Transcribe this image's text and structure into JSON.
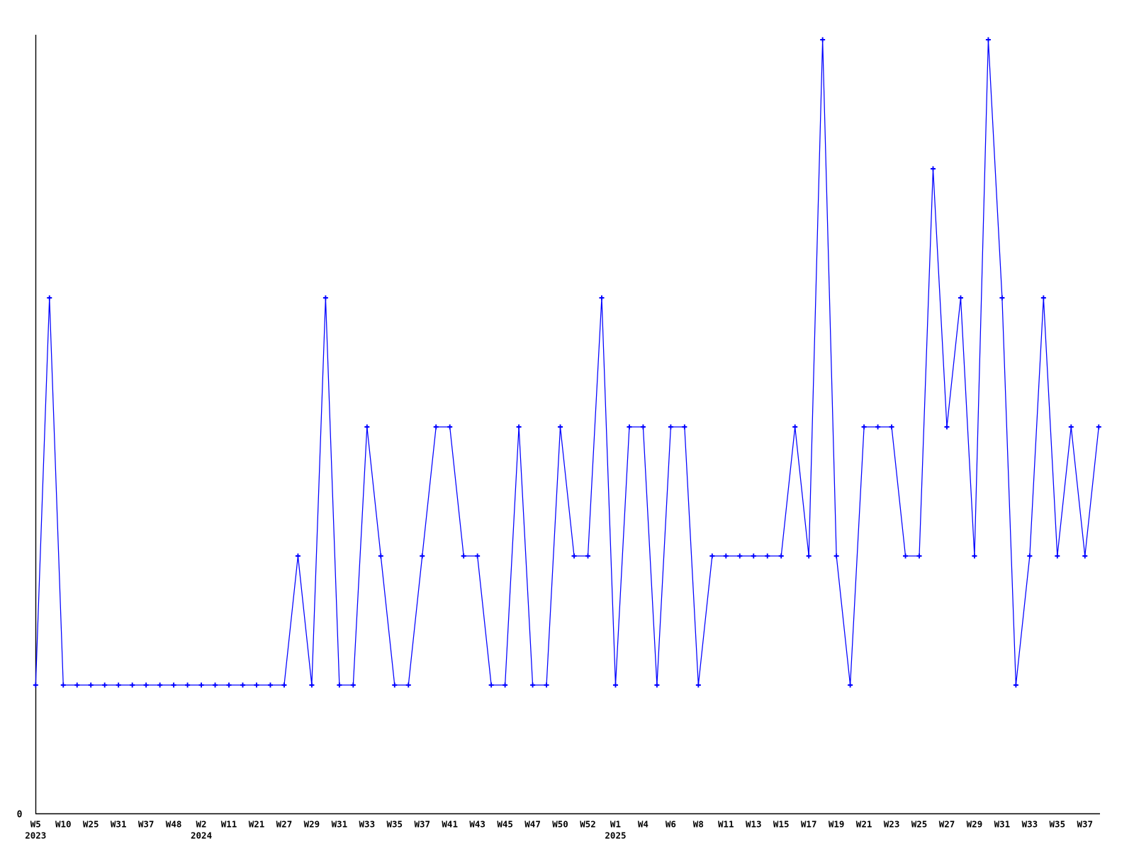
{
  "chart_data": {
    "type": "line",
    "marker_style": "plus",
    "line_color": "#0000ff",
    "axis_color": "#000000",
    "text_color": "#000000",
    "background_color": "#ffffff",
    "grid": "off",
    "legend": "none",
    "y_axis": {
      "origin_label": "0",
      "ylim": [
        0,
        6.05
      ]
    },
    "x_axis": {
      "tick_labels": [
        "W5",
        "W10",
        "W25",
        "W31",
        "W37",
        "W48",
        "W2",
        "W11",
        "W21",
        "W27",
        "W29",
        "W31",
        "W33",
        "W35",
        "W37",
        "W41",
        "W43",
        "W45",
        "W47",
        "W50",
        "W52",
        "W1",
        "W4",
        "W6",
        "W8",
        "W11",
        "W13",
        "W15",
        "W17",
        "W19",
        "W21",
        "W23",
        "W25",
        "W27",
        "W29",
        "W31",
        "W33",
        "W35",
        "W37"
      ],
      "year_labels": [
        {
          "text": "2023",
          "tick_index": 0
        },
        {
          "text": "2024",
          "tick_index": 6
        },
        {
          "text": "2025",
          "tick_index": 21
        }
      ],
      "note": "one tick label per two data points"
    },
    "values": [
      1,
      4,
      1,
      1,
      1,
      1,
      1,
      1,
      1,
      1,
      1,
      1,
      1,
      1,
      1,
      1,
      1,
      1,
      1,
      2,
      1,
      4,
      1,
      1,
      3,
      2,
      1,
      1,
      2,
      3,
      3,
      2,
      2,
      1,
      1,
      3,
      1,
      1,
      3,
      2,
      2,
      4,
      1,
      3,
      3,
      1,
      3,
      3,
      1,
      2,
      2,
      2,
      2,
      2,
      2,
      3,
      2,
      6,
      2,
      1,
      3,
      3,
      3,
      2,
      2,
      5,
      3,
      4,
      2,
      6,
      4,
      1,
      2,
      4,
      2,
      3,
      2,
      3
    ]
  }
}
